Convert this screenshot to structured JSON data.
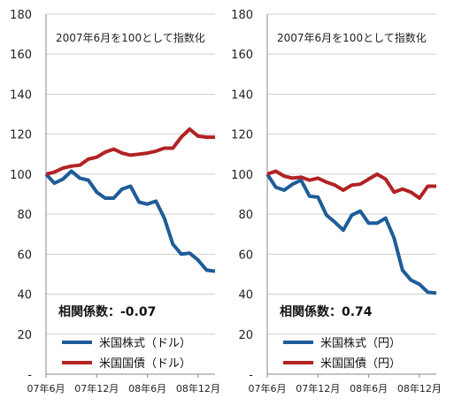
{
  "chart_data": [
    {
      "type": "line",
      "title": "",
      "subtitle": "2007年6月を100として指数化",
      "xlabel": "",
      "ylabel": "",
      "ylim": [
        0,
        180
      ],
      "ytick_labels": [
        "-",
        "20",
        "40",
        "60",
        "80",
        "100",
        "120",
        "140",
        "160",
        "180"
      ],
      "x_tick_labels": [
        "07年6月",
        "07年12月",
        "08年6月",
        "08年12月"
      ],
      "annotation": "相関係数：-0.07",
      "grid": true,
      "legend_position": "bottom-left",
      "x": [
        "07年6月",
        "07年7月",
        "07年8月",
        "07年9月",
        "07年10月",
        "07年11月",
        "07年12月",
        "08年1月",
        "08年2月",
        "08年3月",
        "08年4月",
        "08年5月",
        "08年6月",
        "08年7月",
        "08年8月",
        "08年9月",
        "08年10月",
        "08年11月",
        "08年12月",
        "09年1月",
        "09年2月"
      ],
      "series": [
        {
          "name": "米国株式（ドル）",
          "color": "#1f5c99",
          "values": [
            100,
            95.5,
            97.5,
            101.5,
            98,
            97,
            91,
            88,
            88,
            92.5,
            94,
            86,
            85,
            86.5,
            78,
            65,
            60,
            60.5,
            57,
            52,
            51.5
          ]
        },
        {
          "name": "米国国債（ドル）",
          "color": "#b22222",
          "values": [
            100,
            101,
            103,
            104,
            104.5,
            107.5,
            108.5,
            111,
            112.5,
            110.5,
            109.5,
            110,
            110.5,
            111.5,
            113,
            113,
            118.5,
            122.5,
            119,
            118.5,
            118.5
          ]
        }
      ]
    },
    {
      "type": "line",
      "title": "",
      "subtitle": "2007年6月を100として指数化",
      "xlabel": "",
      "ylabel": "",
      "ylim": [
        0,
        180
      ],
      "ytick_labels": [
        "-",
        "20",
        "40",
        "60",
        "80",
        "100",
        "120",
        "140",
        "160",
        "180"
      ],
      "x_tick_labels": [
        "07年6月",
        "07年12月",
        "08年6月",
        "08年12月"
      ],
      "annotation": "相関係数：0.74",
      "grid": true,
      "legend_position": "bottom-left",
      "x": [
        "07年6月",
        "07年7月",
        "07年8月",
        "07年9月",
        "07年10月",
        "07年11月",
        "07年12月",
        "08年1月",
        "08年2月",
        "08年3月",
        "08年4月",
        "08年5月",
        "08年6月",
        "08年7月",
        "08年8月",
        "08年9月",
        "08年10月",
        "08年11月",
        "08年12月",
        "09年1月",
        "09年2月"
      ],
      "series": [
        {
          "name": "米国株式（円）",
          "color": "#1f5c99",
          "values": [
            100,
            93.5,
            92,
            95,
            97,
            89,
            88.5,
            79.5,
            76,
            72,
            79.5,
            81.5,
            75.5,
            75.5,
            78,
            68,
            52,
            47,
            45,
            41,
            40.5
          ]
        },
        {
          "name": "米国国債（円）",
          "color": "#b22222",
          "values": [
            100,
            101.5,
            99,
            98,
            98.5,
            97,
            98,
            96,
            94.5,
            92,
            94.5,
            95,
            97.5,
            100,
            97.5,
            91,
            92.5,
            91,
            88,
            94,
            94
          ]
        }
      ]
    }
  ]
}
